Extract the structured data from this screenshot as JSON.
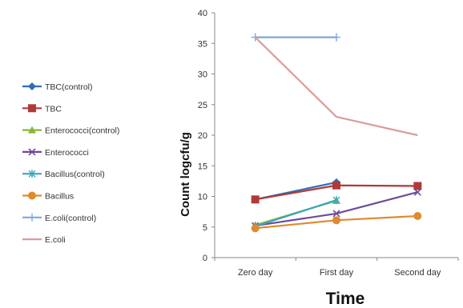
{
  "chart_data": {
    "type": "line",
    "categories": [
      "Zero day",
      "First day",
      "Second day"
    ],
    "xlabel": "Time",
    "ylabel": "Count logcfu/g",
    "ylim": [
      0,
      40
    ],
    "yticks": [
      "0",
      "5",
      "10",
      "15",
      "20",
      "25",
      "30",
      "35",
      "40"
    ],
    "grid": false,
    "legend": "left",
    "series": [
      {
        "name": "TBC(control)",
        "color": "#2E6DB4",
        "marker": "diamond",
        "values": [
          9.5,
          12.3,
          null
        ]
      },
      {
        "name": "TBC",
        "color": "#B03A3A",
        "marker": "square",
        "values": [
          9.5,
          11.8,
          11.7
        ]
      },
      {
        "name": "Enterococci(control)",
        "color": "#8DB33A",
        "marker": "triangle",
        "values": [
          5.3,
          9.3,
          null
        ]
      },
      {
        "name": "Enterococci",
        "color": "#6B4C9A",
        "marker": "x",
        "values": [
          5.2,
          7.2,
          10.7
        ]
      },
      {
        "name": "Bacillus(control)",
        "color": "#39A7C0",
        "marker": "star",
        "values": [
          5.1,
          9.4,
          null
        ]
      },
      {
        "name": "Bacillus",
        "color": "#E08A2E",
        "marker": "circle",
        "values": [
          4.8,
          6.1,
          6.8
        ]
      },
      {
        "name": "E.coli(control)",
        "color": "#7FA6DE",
        "marker": "plus",
        "values": [
          36,
          36,
          null
        ]
      },
      {
        "name": "E.coli",
        "color": "#DA9A9A",
        "marker": "none",
        "values": [
          36,
          23,
          20
        ]
      }
    ]
  }
}
